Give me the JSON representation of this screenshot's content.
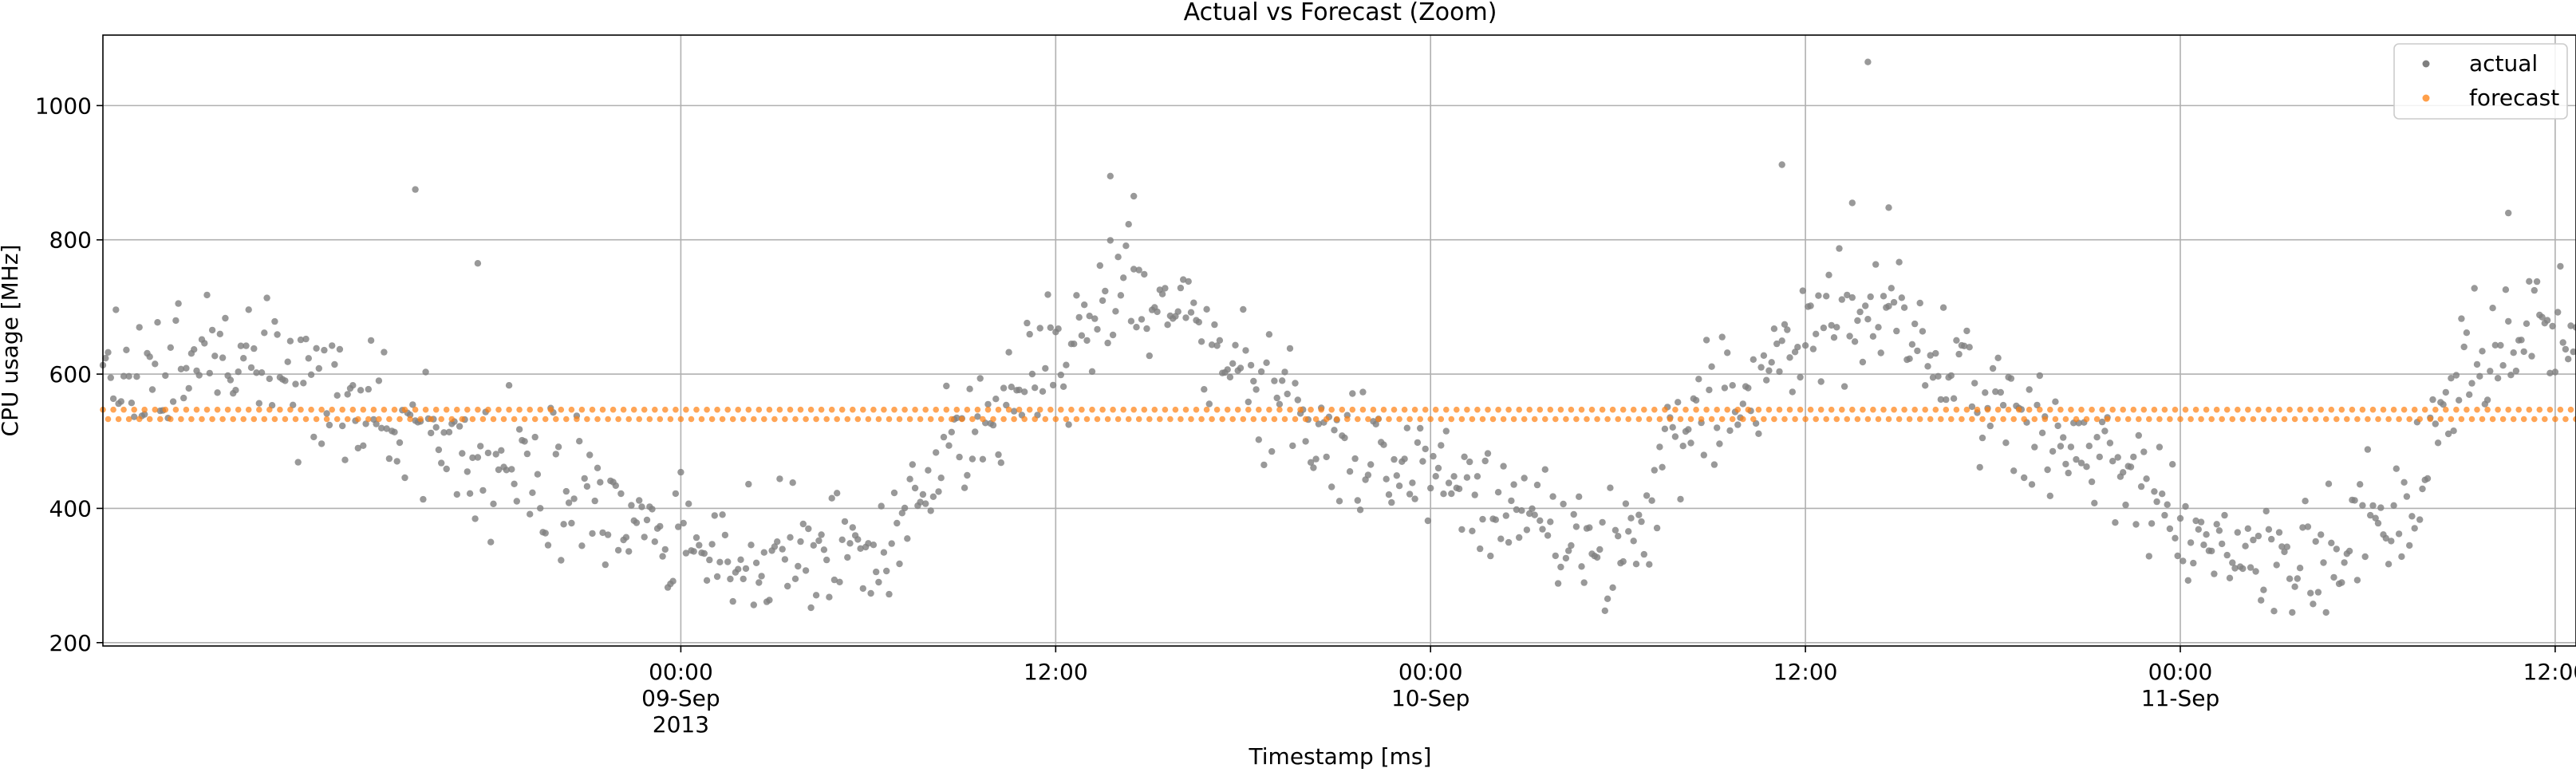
{
  "chart_data": {
    "type": "scatter",
    "title": "Actual vs Forecast (Zoom)",
    "xlabel": "Timestamp [ms]",
    "ylabel": "CPU usage [MHz]",
    "xlim": [
      "2013-09-08T05:30",
      "2013-09-11T12:40"
    ],
    "ylim": [
      195,
      1105
    ],
    "grid": true,
    "legend_position": "top-right",
    "x_ticks": [
      {
        "at": "2013-09-09T00:00",
        "lines": [
          "00:00",
          "09-Sep",
          "2013"
        ]
      },
      {
        "at": "2013-09-09T12:00",
        "lines": [
          "12:00"
        ]
      },
      {
        "at": "2013-09-10T00:00",
        "lines": [
          "00:00",
          "10-Sep"
        ]
      },
      {
        "at": "2013-09-10T12:00",
        "lines": [
          "12:00"
        ]
      },
      {
        "at": "2013-09-11T00:00",
        "lines": [
          "00:00",
          "11-Sep"
        ]
      },
      {
        "at": "2013-09-11T12:00",
        "lines": [
          "12:00"
        ]
      }
    ],
    "y_ticks": [
      200,
      400,
      600,
      800,
      1000
    ],
    "series": [
      {
        "name": "actual",
        "color": "#7f7f7f",
        "marker": "dot",
        "x_start": "2013-09-08T05:30",
        "x_end": "2013-09-11T12:40",
        "x_step_minutes": 5,
        "profile": [
          {
            "t": "2013-09-08T05:30",
            "v": 610
          },
          {
            "t": "2013-09-08T10:00",
            "v": 630
          },
          {
            "t": "2013-09-08T14:30",
            "v": 540
          },
          {
            "t": "2013-09-08T18:30",
            "v": 450
          },
          {
            "t": "2013-09-09T02:00",
            "v": 320
          },
          {
            "t": "2013-09-09T06:00",
            "v": 345
          },
          {
            "t": "2013-09-09T09:30",
            "v": 520
          },
          {
            "t": "2013-09-09T12:00",
            "v": 640
          },
          {
            "t": "2013-09-09T14:30",
            "v": 720
          },
          {
            "t": "2013-09-09T18:00",
            "v": 600
          },
          {
            "t": "2013-09-09T22:00",
            "v": 470
          },
          {
            "t": "2013-09-10T03:00",
            "v": 390
          },
          {
            "t": "2013-09-10T05:00",
            "v": 330
          },
          {
            "t": "2013-09-10T09:30",
            "v": 560
          },
          {
            "t": "2013-09-10T12:30",
            "v": 680
          },
          {
            "t": "2013-09-10T14:30",
            "v": 700
          },
          {
            "t": "2013-09-10T17:00",
            "v": 600
          },
          {
            "t": "2013-09-10T20:00",
            "v": 500
          },
          {
            "t": "2013-09-11T02:00",
            "v": 330
          },
          {
            "t": "2013-09-11T04:30",
            "v": 320
          },
          {
            "t": "2013-09-11T07:00",
            "v": 400
          },
          {
            "t": "2013-09-11T09:30",
            "v": 620
          },
          {
            "t": "2013-09-11T12:40",
            "v": 690
          }
        ],
        "spread": 65,
        "outliers": [
          {
            "t": "2013-09-08T15:30",
            "v": 875
          },
          {
            "t": "2013-09-08T17:30",
            "v": 765
          },
          {
            "t": "2013-09-09T13:45",
            "v": 895
          },
          {
            "t": "2013-09-09T14:30",
            "v": 865
          },
          {
            "t": "2013-09-10T11:15",
            "v": 912
          },
          {
            "t": "2013-09-10T13:30",
            "v": 855
          },
          {
            "t": "2013-09-10T14:00",
            "v": 1065
          },
          {
            "t": "2013-09-10T14:40",
            "v": 848
          },
          {
            "t": "2013-09-11T10:30",
            "v": 840
          }
        ]
      },
      {
        "name": "forecast",
        "color": "#ff7f0e",
        "marker": "dot",
        "x_start": "2013-09-08T05:30",
        "x_end": "2013-09-11T12:40",
        "x_step_minutes": 10,
        "base": 540,
        "alternation": 7
      }
    ]
  }
}
